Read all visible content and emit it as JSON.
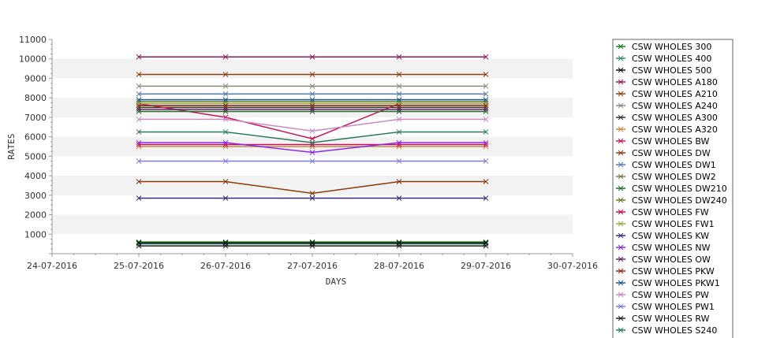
{
  "chart_data": {
    "type": "line",
    "title": "",
    "xlabel": "DAYS",
    "ylabel": "RATES",
    "x_ticks": [
      "24-07-2016",
      "25-07-2016",
      "26-07-2016",
      "27-07-2016",
      "28-07-2016",
      "29-07-2016",
      "30-07-2016"
    ],
    "x": [
      "25-07-2016",
      "26-07-2016",
      "27-07-2016",
      "28-07-2016",
      "29-07-2016"
    ],
    "y_ticks": [
      1000,
      2000,
      3000,
      4000,
      5000,
      6000,
      7000,
      8000,
      9000,
      10000,
      11000
    ],
    "ylim": [
      0,
      11000
    ],
    "grid": "horizontal bands",
    "legend_position": "right",
    "series": [
      {
        "name": "CSW WHOLES 300",
        "color": "#1a7a1a",
        "values": [
          600,
          600,
          600,
          600,
          600
        ]
      },
      {
        "name": "CSW WHOLES 400",
        "color": "#2e8b7a",
        "values": [
          500,
          500,
          500,
          500,
          500
        ]
      },
      {
        "name": "CSW WHOLES 500",
        "color": "#111111",
        "values": [
          550,
          550,
          550,
          550,
          550
        ]
      },
      {
        "name": "CSW WHOLES A180",
        "color": "#8b1a5a",
        "values": [
          10100,
          10100,
          10100,
          10100,
          10100
        ]
      },
      {
        "name": "CSW WHOLES A210",
        "color": "#8b4513",
        "values": [
          9200,
          9200,
          9200,
          9200,
          9200
        ]
      },
      {
        "name": "CSW WHOLES A240",
        "color": "#8a8a7a",
        "values": [
          8600,
          8600,
          8600,
          8600,
          8600
        ]
      },
      {
        "name": "CSW WHOLES A300",
        "color": "#333333",
        "values": [
          7500,
          7500,
          7500,
          7500,
          7500
        ]
      },
      {
        "name": "CSW WHOLES A320",
        "color": "#cc8844",
        "values": [
          5500,
          5500,
          5500,
          5500,
          5500
        ]
      },
      {
        "name": "CSW WHOLES BW",
        "color": "#c2185b",
        "values": [
          7700,
          7000,
          5900,
          7700,
          7700
        ]
      },
      {
        "name": "CSW WHOLES DW",
        "color": "#8b3a0a",
        "values": [
          3700,
          3700,
          3100,
          3700,
          3700
        ]
      },
      {
        "name": "CSW WHOLES DW1",
        "color": "#5a7ab0",
        "values": [
          8200,
          8200,
          8200,
          8200,
          8200
        ]
      },
      {
        "name": "CSW WHOLES DW2",
        "color": "#7a7a50",
        "values": [
          7600,
          7600,
          7600,
          7600,
          7600
        ]
      },
      {
        "name": "CSW WHOLES DW210",
        "color": "#2a6a2a",
        "values": [
          7300,
          7300,
          7300,
          7300,
          7300
        ]
      },
      {
        "name": "CSW WHOLES DW240",
        "color": "#6a7a1a",
        "values": [
          7800,
          7800,
          7800,
          7800,
          7800
        ]
      },
      {
        "name": "CSW WHOLES FW",
        "color": "#c0105a",
        "values": [
          5600,
          5600,
          5600,
          5600,
          5600
        ]
      },
      {
        "name": "CSW WHOLES FW1",
        "color": "#9aaa3a",
        "values": [
          7700,
          7700,
          7700,
          7700,
          7700
        ]
      },
      {
        "name": "CSW WHOLES KW",
        "color": "#3a2a7a",
        "values": [
          2850,
          2850,
          2850,
          2850,
          2850
        ]
      },
      {
        "name": "CSW WHOLES NW",
        "color": "#8a2be2",
        "values": [
          5700,
          5700,
          5200,
          5700,
          5700
        ]
      },
      {
        "name": "CSW WHOLES OW",
        "color": "#5a2a5a",
        "values": [
          7400,
          7400,
          7400,
          7400,
          7400
        ]
      },
      {
        "name": "CSW WHOLES PKW",
        "color": "#8b2a1a",
        "values": [
          7600,
          7600,
          7600,
          7600,
          7600
        ]
      },
      {
        "name": "CSW WHOLES PKW1",
        "color": "#1a5a8a",
        "values": [
          7900,
          7900,
          7900,
          7900,
          7900
        ]
      },
      {
        "name": "CSW WHOLES PW",
        "color": "#cc88cc",
        "values": [
          6900,
          6900,
          6300,
          6900,
          6900
        ]
      },
      {
        "name": "CSW WHOLES PW1",
        "color": "#7a7ae0",
        "values": [
          4750,
          4750,
          4750,
          4750,
          4750
        ]
      },
      {
        "name": "CSW WHOLES RW",
        "color": "#222222",
        "values": [
          400,
          400,
          400,
          400,
          400
        ]
      },
      {
        "name": "CSW WHOLES S240",
        "color": "#2a7a5a",
        "values": [
          6250,
          6250,
          5700,
          6250,
          6250
        ]
      }
    ]
  }
}
